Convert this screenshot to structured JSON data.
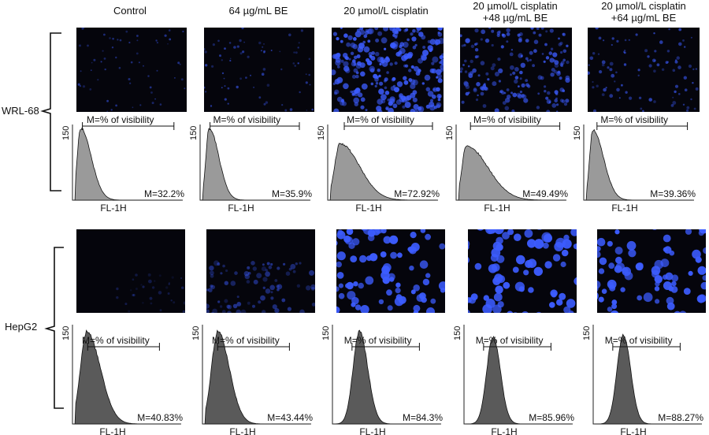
{
  "columns": [
    {
      "line1": "Control",
      "line2": ""
    },
    {
      "line1": "64 µg/mL BE",
      "line2": ""
    },
    {
      "line1": "20 µmol/L cisplatin",
      "line2": ""
    },
    {
      "line1": "20 µmol/L cisplatin",
      "line2": "+48 µg/mL BE"
    },
    {
      "line1": "20 µmol/L cisplatin",
      "line2": "+64 µg/mL BE"
    }
  ],
  "rows": [
    {
      "label": "WRL-68",
      "panels": [
        {
          "gate_label": "M=% of visibility",
          "value_label": "M=32.2%",
          "x_label": "FL-1H",
          "y_tick": "150",
          "value": 32.2
        },
        {
          "gate_label": "M=% of visibility",
          "value_label": "M=35.9%",
          "x_label": "FL-1H",
          "y_tick": "150",
          "value": 35.9
        },
        {
          "gate_label": "M=% of visibility",
          "value_label": "M=72.92%",
          "x_label": "FL-1H",
          "y_tick": "150",
          "value": 72.92
        },
        {
          "gate_label": "M=% of visibility",
          "value_label": "M=49.49%",
          "x_label": "FL-1H",
          "y_tick": "150",
          "value": 49.49
        },
        {
          "gate_label": "M=% of visibility",
          "value_label": "M=39.36%",
          "x_label": "FL-1H",
          "y_tick": "150",
          "value": 39.36
        }
      ]
    },
    {
      "label": "HepG2",
      "panels": [
        {
          "gate_label": "M=% of visibility",
          "value_label": "M=40.83%",
          "x_label": "FL-1H",
          "y_tick": "150",
          "value": 40.83
        },
        {
          "gate_label": "M=% of visibility",
          "value_label": "M=43.44%",
          "x_label": "FL-1H",
          "y_tick": "150",
          "value": 43.44
        },
        {
          "gate_label": "M=% of visibility",
          "value_label": "M=84.3%",
          "x_label": "FL-1H",
          "y_tick": "150",
          "value": 84.3
        },
        {
          "gate_label": "M=% of visibility",
          "value_label": "M=85.96%",
          "x_label": "FL-1H",
          "y_tick": "150",
          "value": 85.96
        },
        {
          "gate_label": "M=% of visibility",
          "value_label": "M=88.27%",
          "x_label": "FL-1H",
          "y_tick": "150",
          "value": 88.27
        }
      ]
    }
  ],
  "colors": {
    "micrograph_background": "#05050c",
    "cell_stain": "#3c5cff",
    "wrl_histogram_fill": "#9a9a9a",
    "hepg2_histogram_fill": "#5a5a5a"
  }
}
